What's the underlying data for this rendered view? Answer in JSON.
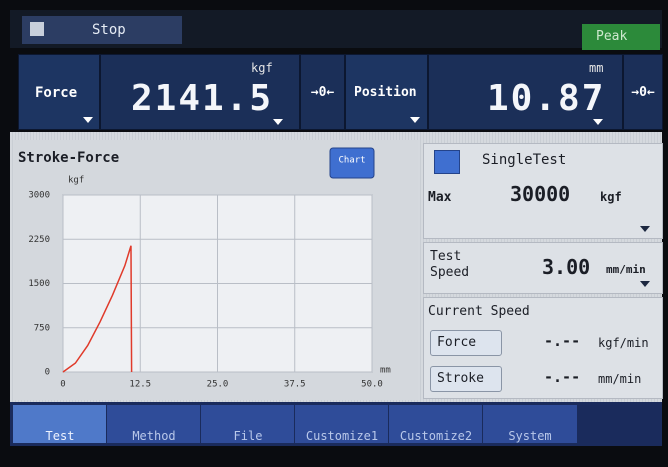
{
  "header": {
    "status": "Stop",
    "mode": "Peak"
  },
  "readouts": [
    {
      "label": "Force",
      "value": "2141.5",
      "unit": "kgf",
      "zero": "→0←"
    },
    {
      "label": "Position",
      "value": "10.87",
      "unit": "mm",
      "zero": "→0←"
    }
  ],
  "chart_data": {
    "type": "line",
    "title": "Stroke-Force",
    "button": "Chart",
    "y_unit": "kgf",
    "x_unit": "mm",
    "x": [
      0,
      2,
      4,
      6,
      8,
      10,
      11,
      11.1
    ],
    "series": [
      {
        "color": "#e03a2a",
        "values": [
          0,
          150,
          450,
          850,
          1300,
          1800,
          2140,
          0
        ]
      }
    ],
    "xlim": [
      0,
      50
    ],
    "xticks": [
      0,
      12.5,
      {
        "value": 25,
        "label": "25.0"
      },
      37.5,
      {
        "value": 50,
        "label": "50.0"
      }
    ],
    "ylim": [
      0,
      3000
    ],
    "yticks": [
      0,
      750,
      1500,
      2250,
      3000
    ],
    "grid": true
  },
  "test": {
    "name": "SingleTest",
    "max_label": "Max",
    "max_value": "30000",
    "max_unit": "kgf",
    "speed_label": [
      "Test",
      "Speed"
    ],
    "speed_value": "3.00",
    "speed_unit": "mm/min"
  },
  "current_speed": {
    "title": "Current Speed",
    "rows": [
      {
        "button": "Force",
        "value": "-.--",
        "unit": "kgf/min"
      },
      {
        "button": "Stroke",
        "value": "-.--",
        "unit": "mm/min"
      }
    ]
  },
  "tabs": [
    "Test",
    "Method",
    "File",
    "Customize1",
    "Customize2",
    "System"
  ]
}
